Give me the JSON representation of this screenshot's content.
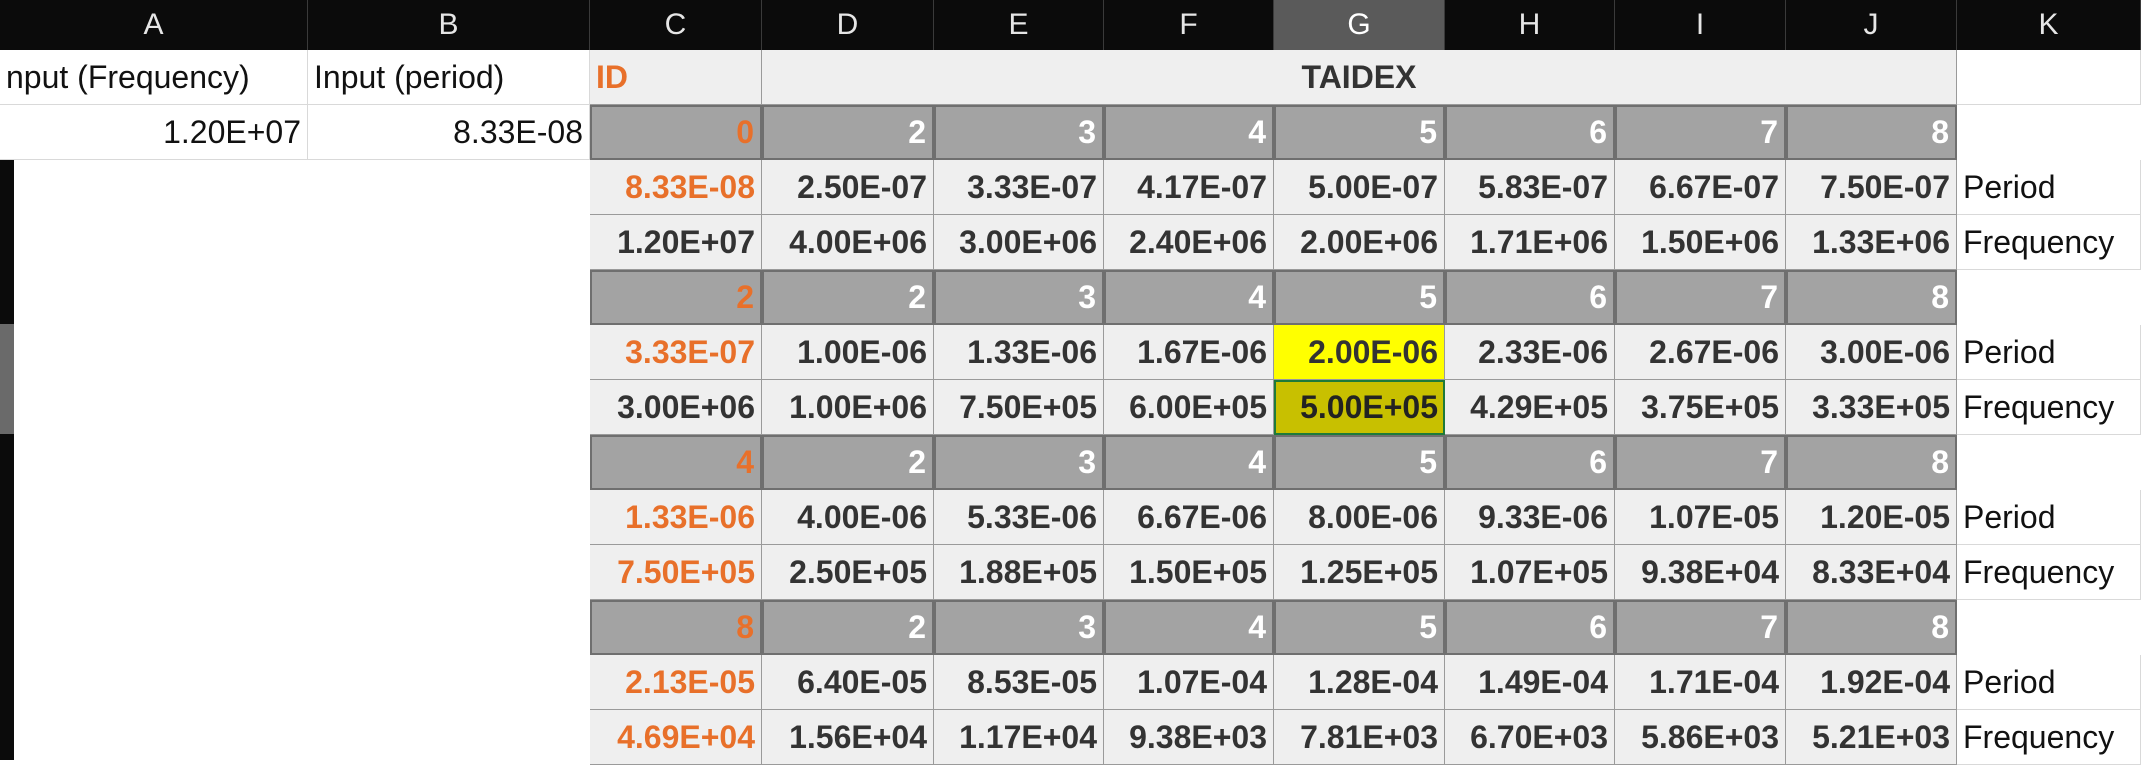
{
  "columns": [
    "A",
    "B",
    "C",
    "D",
    "E",
    "F",
    "G",
    "H",
    "I",
    "J",
    "K"
  ],
  "selected_column": "G",
  "inputs": {
    "frequency_label": "nput (Frequency)",
    "period_label": "Input (period)",
    "frequency_value": "1.20E+07",
    "period_value": "8.33E-08"
  },
  "table": {
    "id_label": "ID",
    "title": "TAIDEX",
    "period_label": "Period",
    "frequency_label": "Frequency",
    "blocks": [
      {
        "id": "0",
        "headers": [
          "2",
          "3",
          "4",
          "5",
          "6",
          "7",
          "8"
        ],
        "id_period": "8.33E-08",
        "id_frequency": "1.20E+07",
        "periods": [
          "2.50E-07",
          "3.33E-07",
          "4.17E-07",
          "5.00E-07",
          "5.83E-07",
          "6.67E-07",
          "7.50E-07"
        ],
        "frequencies": [
          "4.00E+06",
          "3.00E+06",
          "2.40E+06",
          "2.00E+06",
          "1.71E+06",
          "1.50E+06",
          "1.33E+06"
        ]
      },
      {
        "id": "2",
        "headers": [
          "2",
          "3",
          "4",
          "5",
          "6",
          "7",
          "8"
        ],
        "id_period": "3.33E-07",
        "id_frequency": "3.00E+06",
        "periods": [
          "1.00E-06",
          "1.33E-06",
          "1.67E-06",
          "2.00E-06",
          "2.33E-06",
          "2.67E-06",
          "3.00E-06"
        ],
        "frequencies": [
          "1.00E+06",
          "7.50E+05",
          "6.00E+05",
          "5.00E+05",
          "4.29E+05",
          "3.75E+05",
          "3.33E+05"
        ]
      },
      {
        "id": "4",
        "headers": [
          "2",
          "3",
          "4",
          "5",
          "6",
          "7",
          "8"
        ],
        "id_period": "1.33E-06",
        "id_frequency": "7.50E+05",
        "periods": [
          "4.00E-06",
          "5.33E-06",
          "6.67E-06",
          "8.00E-06",
          "9.33E-06",
          "1.07E-05",
          "1.20E-05"
        ],
        "frequencies": [
          "2.50E+05",
          "1.88E+05",
          "1.50E+05",
          "1.25E+05",
          "1.07E+05",
          "9.38E+04",
          "8.33E+04"
        ]
      },
      {
        "id": "8",
        "headers": [
          "2",
          "3",
          "4",
          "5",
          "6",
          "7",
          "8"
        ],
        "id_period": "2.13E-05",
        "id_frequency": "4.69E+04",
        "periods": [
          "6.40E-05",
          "8.53E-05",
          "1.07E-04",
          "1.28E-04",
          "1.49E-04",
          "1.71E-04",
          "1.92E-04"
        ],
        "frequencies": [
          "1.56E+04",
          "1.17E+04",
          "9.38E+03",
          "7.81E+03",
          "6.70E+03",
          "5.86E+03",
          "5.21E+03"
        ]
      }
    ]
  },
  "highlights": {
    "yellow": "#ffff00",
    "olive": "#c8c000",
    "orange": "#e8702a"
  }
}
